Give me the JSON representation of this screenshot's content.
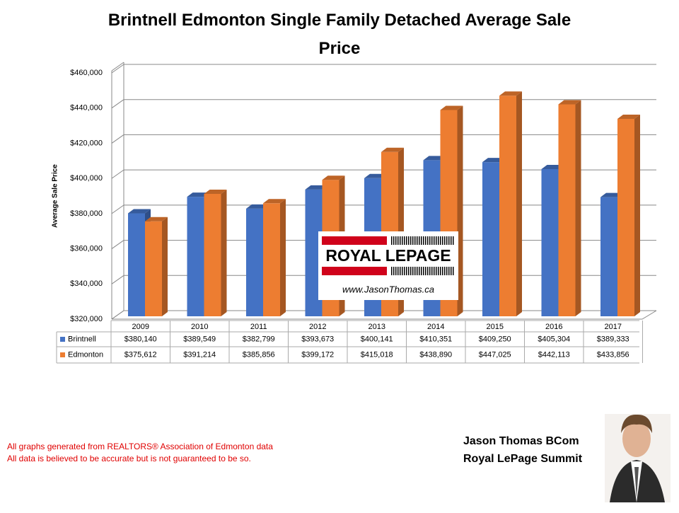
{
  "chart_data": {
    "type": "bar3d",
    "title": "Brintnell Edmonton Single Family Detached Average Sale Price",
    "y_label": "Average Sale Price",
    "categories": [
      "2009",
      "2010",
      "2011",
      "2012",
      "2013",
      "2014",
      "2015",
      "2016",
      "2017"
    ],
    "series": [
      {
        "name": "Brintnell",
        "color": "#4472c4",
        "values": [
          380140,
          389549,
          382799,
          393673,
          400141,
          410351,
          409250,
          405304,
          389333
        ],
        "value_labels": [
          "$380,140",
          "$389,549",
          "$382,799",
          "$393,673",
          "$400,141",
          "$410,351",
          "$409,250",
          "$405,304",
          "$389,333"
        ]
      },
      {
        "name": "Edmonton",
        "color": "#ed7d31",
        "values": [
          375612,
          391214,
          385856,
          399172,
          415018,
          438890,
          447025,
          442113,
          433856
        ],
        "value_labels": [
          "$375,612",
          "$391,214",
          "$385,856",
          "$399,172",
          "$415,018",
          "$438,890",
          "$447,025",
          "$442,113",
          "$433,856"
        ]
      }
    ],
    "ylim": [
      320000,
      460000
    ],
    "yticks": [
      {
        "value": 320000,
        "label": "$320,000"
      },
      {
        "value": 340000,
        "label": "$340,000"
      },
      {
        "value": 360000,
        "label": "$360,000"
      },
      {
        "value": 380000,
        "label": "$380,000"
      },
      {
        "value": 400000,
        "label": "$400,000"
      },
      {
        "value": 420000,
        "label": "$420,000"
      },
      {
        "value": 440000,
        "label": "$440,000"
      },
      {
        "value": 460000,
        "label": "$460,000"
      }
    ],
    "grid": true
  },
  "logo": {
    "name": "ROYAL LEPAGE",
    "url": "www.JasonThomas.ca"
  },
  "footnotes": [
    "All graphs generated from REALTORS® Association of Edmonton data",
    "All data is believed to be accurate but is not guaranteed to be so."
  ],
  "signature": [
    "Jason Thomas BCom",
    "Royal LePage Summit"
  ]
}
